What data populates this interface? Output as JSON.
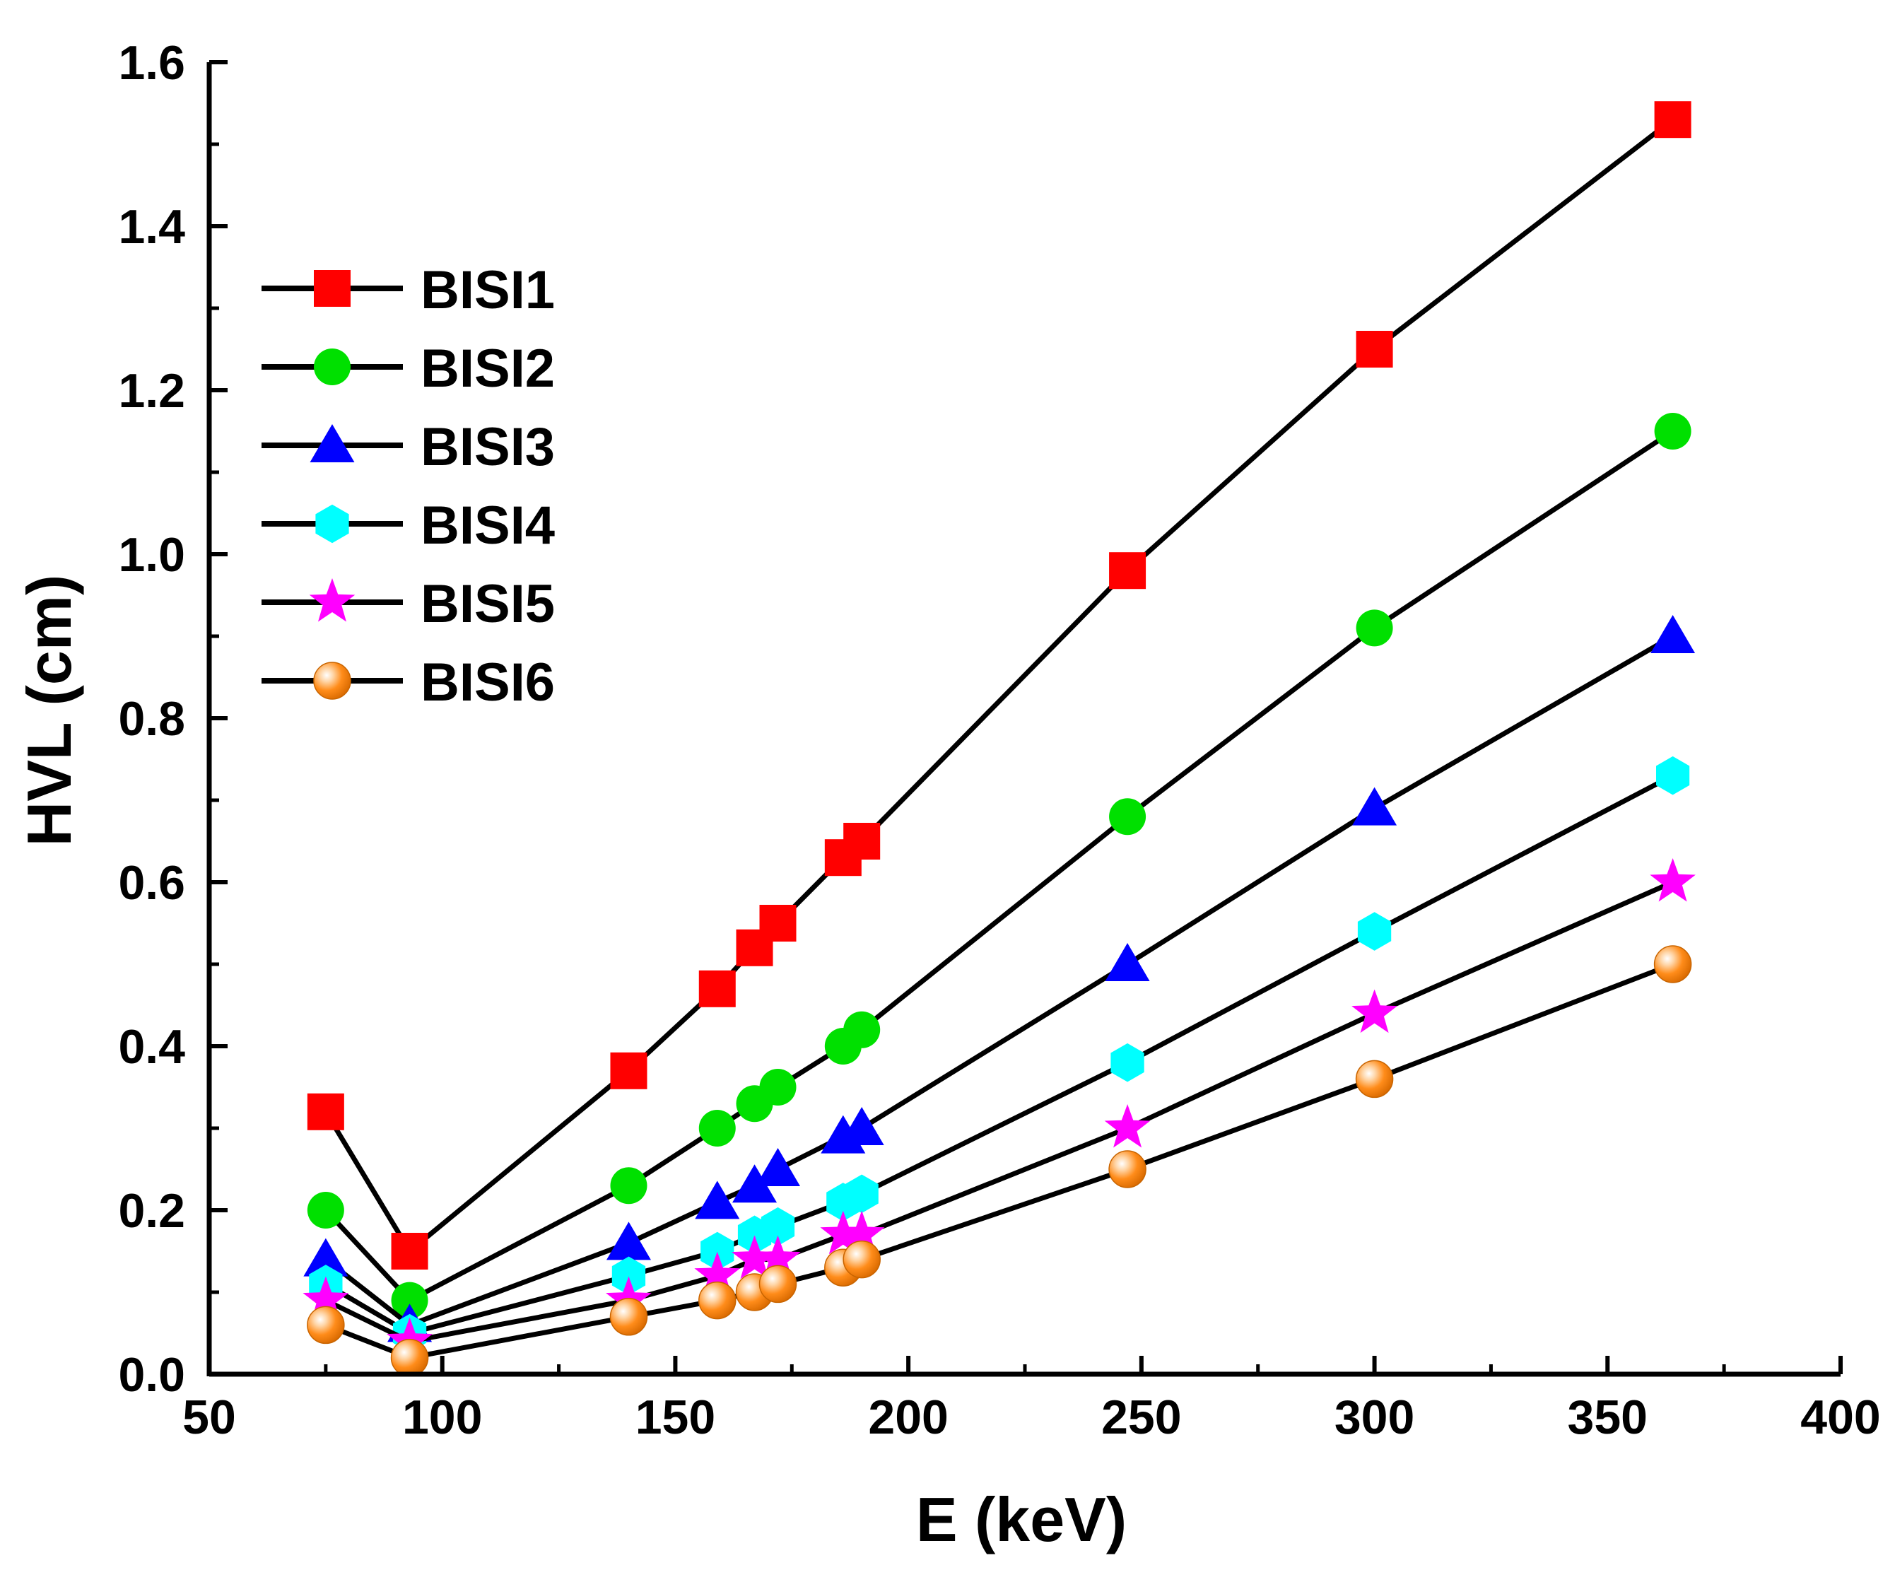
{
  "chart_data": {
    "type": "line",
    "title": "",
    "xlabel": "E (keV)",
    "ylabel": "HVL (cm)",
    "xlim": [
      50,
      400
    ],
    "ylim": [
      0.0,
      1.6
    ],
    "xticks": [
      50,
      100,
      150,
      200,
      250,
      300,
      350,
      400
    ],
    "yticks": [
      0.0,
      0.2,
      0.4,
      0.6,
      0.8,
      1.0,
      1.2,
      1.4,
      1.6
    ],
    "xtick_labels": [
      "50",
      "100",
      "150",
      "200",
      "250",
      "300",
      "350",
      "400"
    ],
    "ytick_labels": [
      "0.0",
      "0.2",
      "0.4",
      "0.6",
      "0.8",
      "1.0",
      "1.2",
      "1.4",
      "1.6"
    ],
    "grid": false,
    "legend_position": "top-left",
    "x": [
      75,
      93,
      140,
      159,
      167,
      172,
      186,
      190,
      247,
      300,
      364
    ],
    "series": [
      {
        "name": "BISI1",
        "marker": "square",
        "color": "#ff0000",
        "values": [
          0.32,
          0.15,
          0.37,
          0.47,
          0.52,
          0.55,
          0.63,
          0.65,
          0.98,
          1.25,
          1.53
        ]
      },
      {
        "name": "BISI2",
        "marker": "circle",
        "color": "#00e000",
        "values": [
          0.2,
          0.09,
          0.23,
          0.3,
          0.33,
          0.35,
          0.4,
          0.42,
          0.68,
          0.91,
          1.15
        ]
      },
      {
        "name": "BISI3",
        "marker": "triangle",
        "color": "#0000ff",
        "values": [
          0.14,
          0.06,
          0.16,
          0.21,
          0.23,
          0.25,
          0.29,
          0.3,
          0.5,
          0.69,
          0.9
        ]
      },
      {
        "name": "BISI4",
        "marker": "hexagon",
        "color": "#00ffff",
        "values": [
          0.11,
          0.05,
          0.12,
          0.15,
          0.17,
          0.18,
          0.21,
          0.22,
          0.38,
          0.54,
          0.73
        ]
      },
      {
        "name": "BISI5",
        "marker": "star",
        "color": "#ff00ff",
        "values": [
          0.09,
          0.04,
          0.09,
          0.12,
          0.14,
          0.14,
          0.17,
          0.17,
          0.3,
          0.44,
          0.6
        ]
      },
      {
        "name": "BISI6",
        "marker": "sphere",
        "color": "#ff8000",
        "values": [
          0.06,
          0.02,
          0.07,
          0.09,
          0.1,
          0.11,
          0.13,
          0.14,
          0.25,
          0.36,
          0.5
        ]
      }
    ]
  }
}
